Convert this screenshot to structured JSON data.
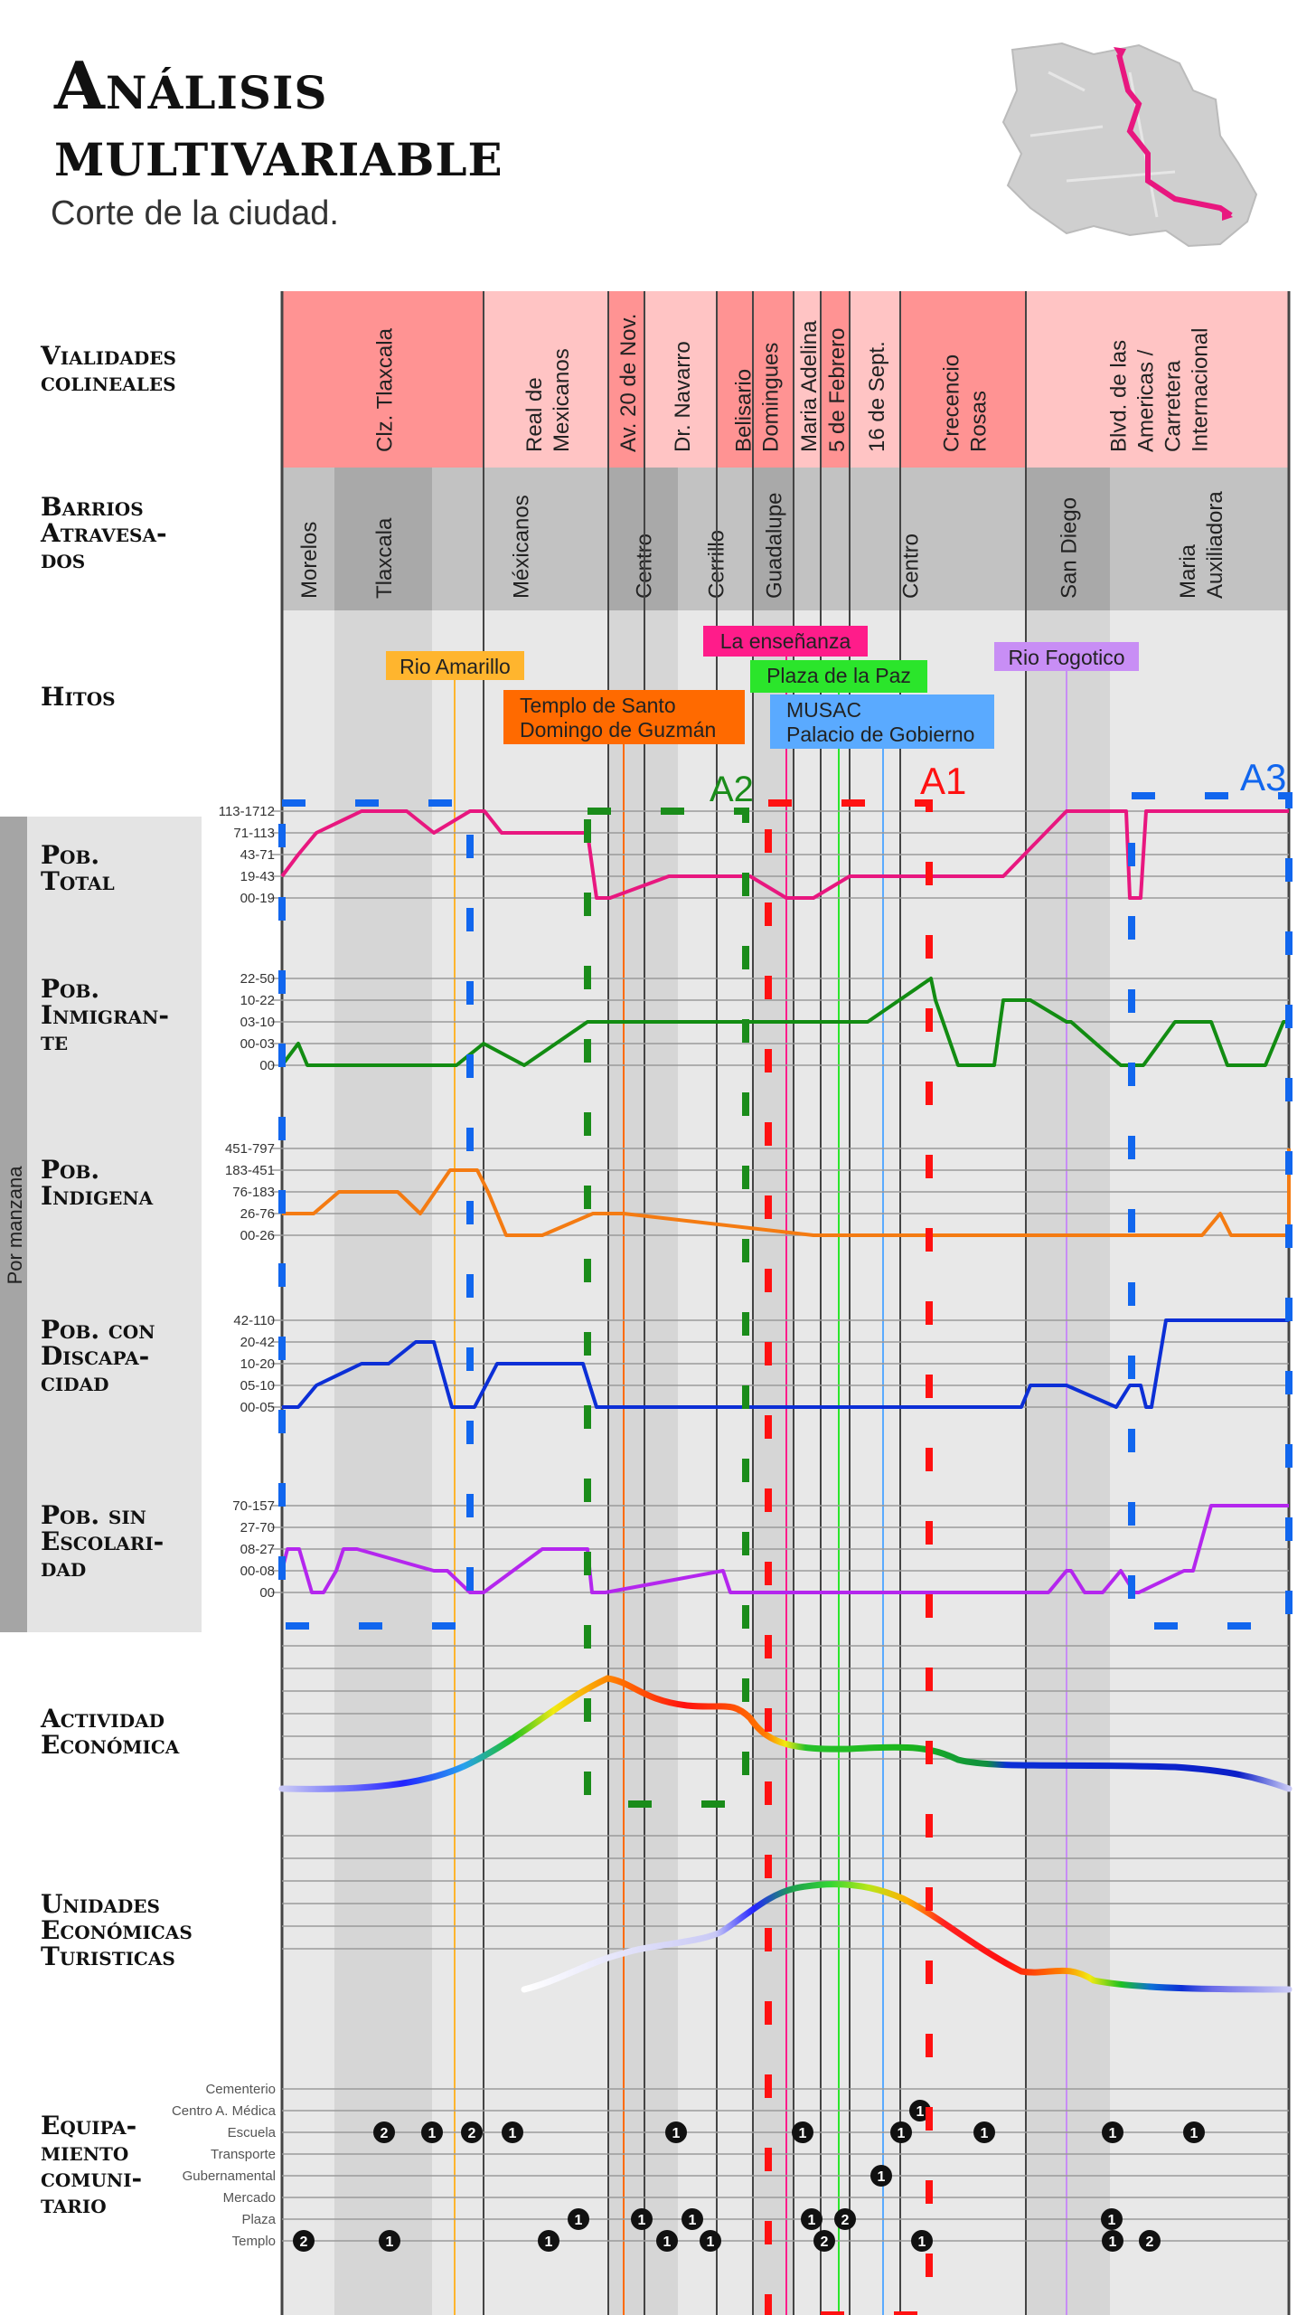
{
  "title_line1": "Análisis",
  "title_line2": "multivariable",
  "subtitle": "Corte de la ciudad.",
  "side_label": "Por manzana",
  "rows": {
    "vialidades": [
      "Vialidades",
      "colineales"
    ],
    "barrios": [
      "Barrios",
      "Atravesa-",
      "dos"
    ],
    "hitos": [
      "Hitos"
    ],
    "pob_total": [
      "Pob.",
      "Total"
    ],
    "pob_inmigrante": [
      "Pob.",
      "Inmigran-",
      "te"
    ],
    "pob_indigena": [
      "Pob.",
      "Indigena"
    ],
    "pob_discapacidad": [
      "Pob. con",
      "Discapa-",
      "cidad"
    ],
    "pob_sin_escolaridad": [
      "Pob. sin",
      "Escolari-",
      "dad"
    ],
    "actividad": [
      "Actividad",
      "Económica"
    ],
    "unidades": [
      "Unidades",
      "Económicas",
      "Turisticas"
    ],
    "equipamiento": [
      "Equipa-",
      "miento",
      "comuni-",
      "tario"
    ]
  },
  "streets": [
    {
      "name": "Clz. Tlaxcala",
      "lines": [
        "Clz. Tlaxcala"
      ],
      "color": "#ff9393"
    },
    {
      "name": "Real de Mexicanos",
      "lines": [
        "Real de",
        "Mexicanos"
      ],
      "color": "#ffc4c4"
    },
    {
      "name": "Av. 20 de Nov.",
      "lines": [
        "Av. 20 de Nov."
      ],
      "color": "#ff9393"
    },
    {
      "name": "Dr. Navarro",
      "lines": [
        "Dr. Navarro"
      ],
      "color": "#ffc4c4"
    },
    {
      "name": "Belisario Domingues",
      "lines": [
        "Belisario",
        "Domingues"
      ],
      "color": "#ff9393"
    },
    {
      "name": "Maria Adelina",
      "lines": [
        "Maria Adelina"
      ],
      "color": "#ffc4c4"
    },
    {
      "name": "5 de Febrero",
      "lines": [
        "5 de Febrero"
      ],
      "color": "#ff9393"
    },
    {
      "name": "16 de Sept.",
      "lines": [
        "16 de Sept."
      ],
      "color": "#ffc4c4"
    },
    {
      "name": "Crecencio Rosas",
      "lines": [
        "Crecencio",
        "Rosas"
      ],
      "color": "#ff9393"
    },
    {
      "name": "Blvd. de las Americas / Carretera Internacional",
      "lines": [
        "Blvd. de las",
        "Americas /",
        "Carretera",
        "Internacional"
      ],
      "color": "#ffc4c4"
    }
  ],
  "barrios": [
    {
      "name": "Morelos",
      "color": "#c2c2c2"
    },
    {
      "name": "Tlaxcala",
      "color": "#a9a9a9"
    },
    {
      "name": "Méxicanos",
      "color": "#c2c2c2"
    },
    {
      "name": "Centro",
      "color": "#a9a9a9"
    },
    {
      "name": "Cerrillo",
      "color": "#c2c2c2"
    },
    {
      "name": "Guadalupe",
      "color": "#a9a9a9"
    },
    {
      "name": "Centro",
      "color": "#c2c2c2"
    },
    {
      "name": "San Diego",
      "color": "#a9a9a9"
    },
    {
      "name": "Maria Auxiliadora",
      "color": "#c2c2c2"
    }
  ],
  "hitos": [
    {
      "label": [
        "Rio Amarillo"
      ],
      "color": "#ffb52e",
      "line": "#ffb52e",
      "text": "#222"
    },
    {
      "label": [
        "Templo de Santo",
        "Domingo de Guzmán"
      ],
      "color": "#ff6a00",
      "line": "#ff6a00",
      "text": "#222"
    },
    {
      "label": [
        "La enseñanza"
      ],
      "color": "#ff1c8a",
      "line": "#ff1c8a",
      "text": "#222"
    },
    {
      "label": [
        "Plaza de la Paz"
      ],
      "color": "#2be52b",
      "line": "#2be52b",
      "text": "#222"
    },
    {
      "label": [
        "MUSAC",
        "Palacio de Gobierno"
      ],
      "color": "#5aaaff",
      "line": "#5aaaff",
      "text": "#222"
    },
    {
      "label": [
        "Rio Fogotico"
      ],
      "color": "#c88ef5",
      "line": "#c88ef5",
      "text": "#222"
    }
  ],
  "areas": [
    {
      "label": "A1",
      "color": "#ff1111"
    },
    {
      "label": "A2",
      "color": "#1a8c1a"
    },
    {
      "label": "A3",
      "color": "#1166ee"
    }
  ],
  "variables": [
    {
      "key": "total",
      "levels": [
        "113-1712",
        "71-113",
        "43-71",
        "19-43",
        "00-19"
      ],
      "color": "#e8177f",
      "values": [
        1,
        2,
        3,
        4,
        4,
        3,
        4,
        4,
        3,
        3,
        0,
        0,
        1,
        1,
        1,
        1,
        0,
        0,
        0,
        1,
        1,
        1,
        4,
        4,
        0,
        0,
        4,
        4,
        4
      ]
    },
    {
      "key": "inmigrante",
      "levels": [
        "22-50",
        "10-22",
        "03-10",
        "00-03",
        "00"
      ],
      "color": "#128c12",
      "values": [
        0,
        1,
        0,
        0,
        0,
        1,
        0,
        2,
        2,
        2,
        2,
        2,
        2,
        2,
        2,
        2,
        4,
        3,
        0,
        0,
        0,
        3,
        3,
        2,
        2,
        0,
        0,
        2,
        2,
        0,
        0,
        0,
        2,
        2
      ]
    },
    {
      "key": "indigena",
      "levels": [
        "451-797",
        "183-451",
        "76-183",
        "26-76",
        "00-26"
      ],
      "color": "#f47b12",
      "values": [
        1,
        1,
        2,
        2,
        1,
        3,
        3,
        2,
        0,
        0,
        1,
        1,
        1,
        0,
        0,
        0,
        0,
        0,
        0,
        0,
        0,
        0,
        1,
        0,
        0,
        2,
        2,
        0,
        1,
        4,
        4
      ]
    },
    {
      "key": "discapacidad",
      "levels": [
        "42-110",
        "20-42",
        "10-20",
        "05-10",
        "00-05"
      ],
      "color": "#0c2fd6",
      "values": [
        0,
        0,
        1,
        2,
        2,
        3,
        3,
        0,
        0,
        2,
        2,
        2,
        0,
        0,
        0,
        0,
        0,
        0,
        0,
        0,
        1,
        1,
        1,
        0,
        1,
        1,
        0,
        0,
        4,
        4
      ]
    },
    {
      "key": "sin_escolaridad",
      "levels": [
        "70-157",
        "27-70",
        "08-27",
        "00-08",
        "00"
      ],
      "color": "#b426ee",
      "values": [
        1,
        2,
        2,
        0,
        0,
        1,
        2,
        2,
        1,
        1,
        0,
        0,
        2,
        2,
        0,
        0,
        1,
        0,
        0,
        0,
        0,
        0,
        0,
        0,
        1,
        1,
        0,
        0,
        1,
        0,
        0,
        1,
        1,
        4,
        4
      ]
    }
  ],
  "equip_categories": [
    "Cementerio",
    "Centro A. Médica",
    "Escuela",
    "Transporte",
    "Gubernamental",
    "Mercado",
    "Plaza",
    "Templo"
  ],
  "equip_markers": [
    {
      "cat": 2,
      "n": "2"
    },
    {
      "cat": 2,
      "n": "1"
    },
    {
      "cat": 2,
      "n": "2"
    },
    {
      "cat": 2,
      "n": "1"
    },
    {
      "cat": 2,
      "n": "1"
    },
    {
      "cat": 2,
      "n": "1"
    },
    {
      "cat": 2,
      "n": "1"
    },
    {
      "cat": 2,
      "n": "1"
    },
    {
      "cat": 2,
      "n": "1"
    },
    {
      "cat": 2,
      "n": "1"
    },
    {
      "cat": 1,
      "n": "1"
    },
    {
      "cat": 4,
      "n": "1"
    },
    {
      "cat": 6,
      "n": "1"
    },
    {
      "cat": 6,
      "n": "1"
    },
    {
      "cat": 6,
      "n": "1"
    },
    {
      "cat": 6,
      "n": "1"
    },
    {
      "cat": 6,
      "n": "2"
    },
    {
      "cat": 6,
      "n": "1"
    },
    {
      "cat": 7,
      "n": "2"
    },
    {
      "cat": 7,
      "n": "1"
    },
    {
      "cat": 7,
      "n": "1"
    },
    {
      "cat": 7,
      "n": "1"
    },
    {
      "cat": 7,
      "n": "1"
    },
    {
      "cat": 7,
      "n": "2"
    },
    {
      "cat": 7,
      "n": "1"
    },
    {
      "cat": 7,
      "n": "1"
    },
    {
      "cat": 7,
      "n": "2"
    }
  ]
}
